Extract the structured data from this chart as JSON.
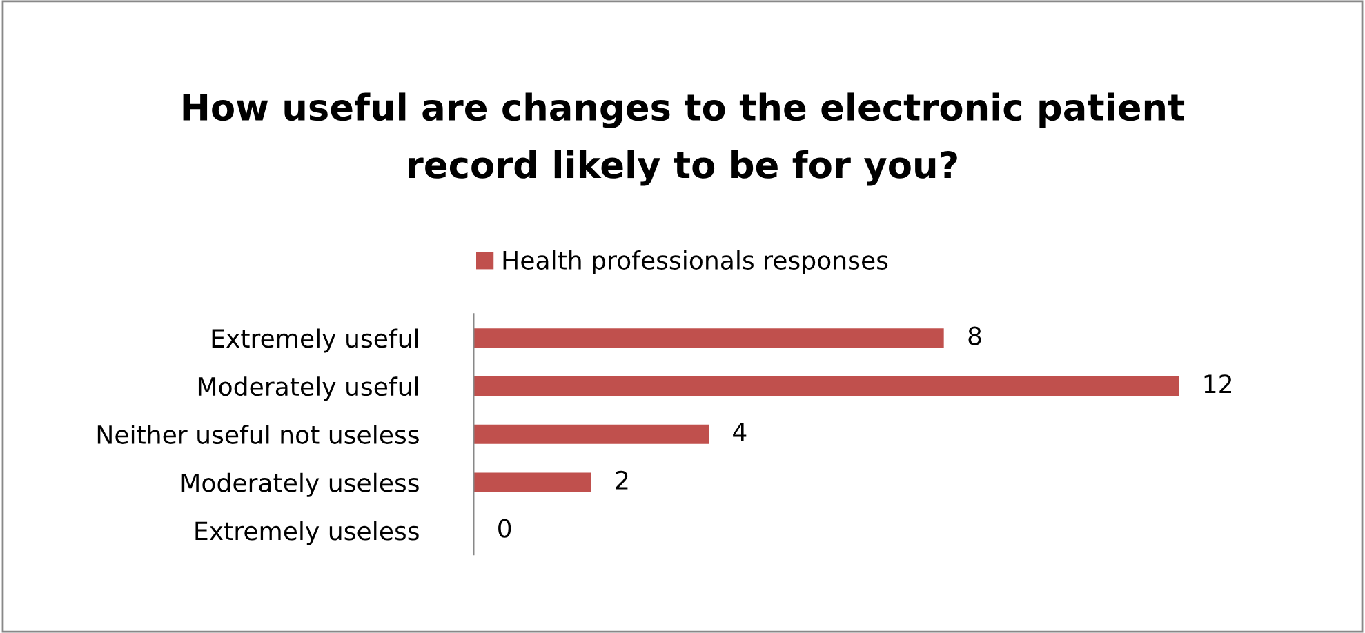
{
  "chart_data": {
    "type": "bar",
    "orientation": "horizontal",
    "title": "How useful are changes to the electronic patient\nrecord likely to be for you?",
    "categories": [
      "Extremely useful",
      "Moderately useful",
      "Neither useful not useless",
      "Moderately useless",
      "Extremely useless"
    ],
    "series": [
      {
        "name": "Health professionals responses",
        "color": "#c0504d",
        "values": [
          8,
          12,
          4,
          2,
          0
        ]
      }
    ],
    "data_labels": true,
    "legend": "top",
    "grid": false
  }
}
